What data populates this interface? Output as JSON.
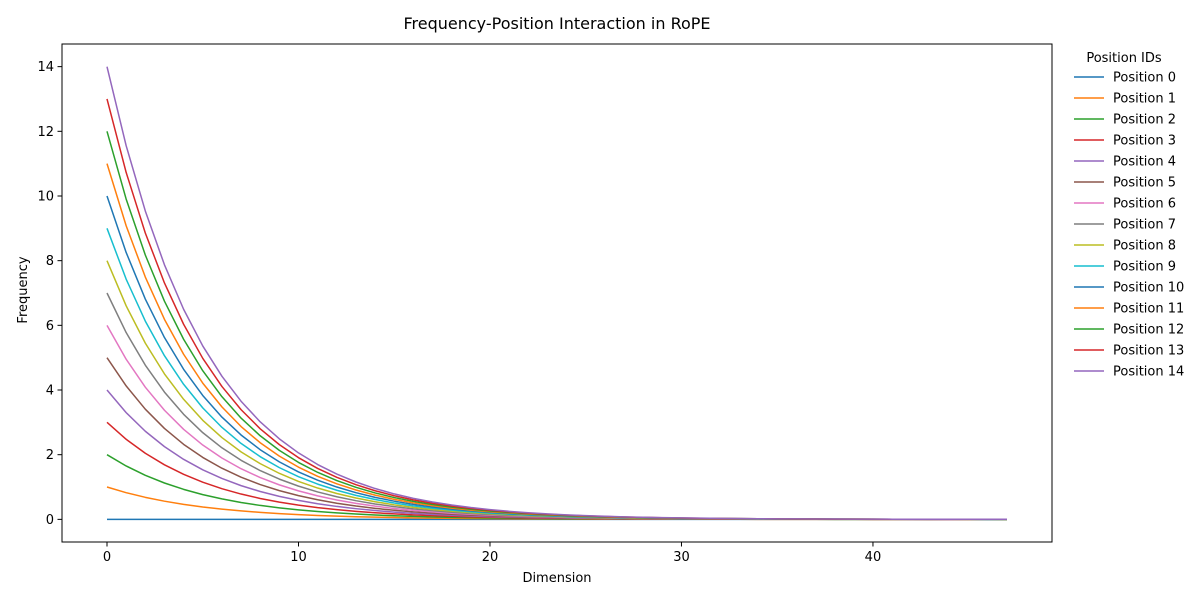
{
  "chart_data": {
    "type": "line",
    "title": "Frequency-Position Interaction in RoPE",
    "xlabel": "Dimension",
    "ylabel": "Frequency",
    "xlim": [
      -2.35,
      49.35
    ],
    "ylim": [
      -0.7,
      14.7
    ],
    "x_ticks": [
      0,
      10,
      20,
      30,
      40
    ],
    "y_ticks": [
      0,
      2,
      4,
      6,
      8,
      10,
      12,
      14
    ],
    "grid": false,
    "legend": {
      "title": "Position IDs",
      "placement": "outside-right"
    },
    "x": [
      0,
      1,
      2,
      3,
      4,
      5,
      6,
      7,
      8,
      9,
      10,
      11,
      12,
      13,
      14,
      15,
      16,
      17,
      18,
      19,
      20,
      21,
      22,
      23,
      24,
      25,
      26,
      27,
      28,
      29,
      30,
      31,
      32,
      33,
      34,
      35,
      36,
      37,
      38,
      39,
      40,
      41,
      42,
      43,
      44,
      45,
      46,
      47
    ],
    "decay_rate": 0.1919,
    "series": [
      {
        "name": "Position 0",
        "position": 0,
        "color": "#1f77b4"
      },
      {
        "name": "Position 1",
        "position": 1,
        "color": "#ff7f0e"
      },
      {
        "name": "Position 2",
        "position": 2,
        "color": "#2ca02c"
      },
      {
        "name": "Position 3",
        "position": 3,
        "color": "#d62728"
      },
      {
        "name": "Position 4",
        "position": 4,
        "color": "#9467bd"
      },
      {
        "name": "Position 5",
        "position": 5,
        "color": "#8c564b"
      },
      {
        "name": "Position 6",
        "position": 6,
        "color": "#e377c2"
      },
      {
        "name": "Position 7",
        "position": 7,
        "color": "#7f7f7f"
      },
      {
        "name": "Position 8",
        "position": 8,
        "color": "#bcbd22"
      },
      {
        "name": "Position 9",
        "position": 9,
        "color": "#17becf"
      },
      {
        "name": "Position 10",
        "position": 10,
        "color": "#1f77b4"
      },
      {
        "name": "Position 11",
        "position": 11,
        "color": "#ff7f0e"
      },
      {
        "name": "Position 12",
        "position": 12,
        "color": "#2ca02c"
      },
      {
        "name": "Position 13",
        "position": 13,
        "color": "#d62728"
      },
      {
        "name": "Position 14",
        "position": 14,
        "color": "#9467bd"
      }
    ]
  }
}
